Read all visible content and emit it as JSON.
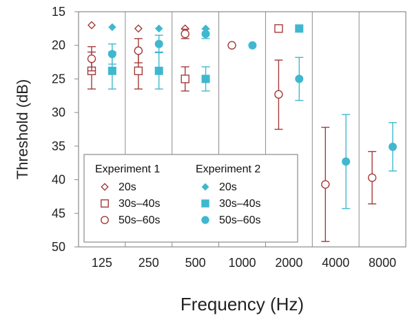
{
  "chart_data": {
    "type": "scatter",
    "xlabel": "Frequency (Hz)",
    "ylabel": "Threshold (dB)",
    "categories": [
      "125",
      "250",
      "500",
      "1000",
      "2000",
      "4000",
      "8000"
    ],
    "yticks": [
      "15",
      "20",
      "25",
      "30",
      "35",
      "40",
      "45",
      "50"
    ],
    "ylim": [
      15,
      50
    ],
    "y_inverted": true,
    "grid": "vertical",
    "legend": {
      "placement": "lower-left",
      "groups": [
        {
          "title": "Experiment 1",
          "entries": [
            {
              "label": "20s",
              "marker": "diamond-open",
              "color": "#a33a3a"
            },
            {
              "label": "30s–40s",
              "marker": "square-open",
              "color": "#a33a3a"
            },
            {
              "label": "50s–60s",
              "marker": "circle-open",
              "color": "#a33a3a"
            }
          ]
        },
        {
          "title": "Experiment 2",
          "entries": [
            {
              "label": "20s",
              "marker": "diamond-filled",
              "color": "#3fb8cf"
            },
            {
              "label": "30s–40s",
              "marker": "square-filled",
              "color": "#3fb8cf"
            },
            {
              "label": "50s–60s",
              "marker": "circle-filled",
              "color": "#3fb8cf"
            }
          ]
        }
      ]
    },
    "series": [
      {
        "experiment": 1,
        "age": "20s",
        "marker": "diamond-open",
        "color": "#a33a3a",
        "offset": -0.22,
        "points": [
          {
            "x": "125",
            "y": 17
          },
          {
            "x": "250",
            "y": 17.5
          },
          {
            "x": "500",
            "y": 17.5
          }
        ]
      },
      {
        "experiment": 1,
        "age": "30s–40s",
        "marker": "square-open",
        "color": "#a33a3a",
        "offset": -0.22,
        "points": [
          {
            "x": "125",
            "y": 23.8,
            "lo": 21,
            "hi": 26.5
          },
          {
            "x": "250",
            "y": 23.8,
            "lo": 21,
            "hi": 26.5
          },
          {
            "x": "500",
            "y": 25,
            "lo": 23.2,
            "hi": 26.8
          },
          {
            "x": "2000",
            "y": 17.5
          }
        ]
      },
      {
        "experiment": 1,
        "age": "50s–60s",
        "marker": "circle-open",
        "color": "#a33a3a",
        "offset": -0.22,
        "points": [
          {
            "x": "125",
            "y": 22,
            "lo": 20.2,
            "hi": 23.8
          },
          {
            "x": "250",
            "y": 20.8,
            "lo": 19,
            "hi": 22.6
          },
          {
            "x": "500",
            "y": 18.3,
            "lo": 17.6,
            "hi": 19
          },
          {
            "x": "1000",
            "y": 20
          },
          {
            "x": "2000",
            "y": 27.3,
            "lo": 22.2,
            "hi": 32.5
          },
          {
            "x": "4000",
            "y": 40.7,
            "lo": 32.2,
            "hi": 49.2
          },
          {
            "x": "8000",
            "y": 39.7,
            "lo": 35.8,
            "hi": 43.6
          }
        ]
      },
      {
        "experiment": 2,
        "age": "20s",
        "marker": "diamond-filled",
        "color": "#3fb8cf",
        "offset": 0.22,
        "points": [
          {
            "x": "125",
            "y": 17.3
          },
          {
            "x": "250",
            "y": 17.5
          },
          {
            "x": "500",
            "y": 17.5
          }
        ]
      },
      {
        "experiment": 2,
        "age": "30s–40s",
        "marker": "square-filled",
        "color": "#3fb8cf",
        "offset": 0.22,
        "points": [
          {
            "x": "125",
            "y": 23.8,
            "lo": 21,
            "hi": 26.5
          },
          {
            "x": "250",
            "y": 23.8,
            "lo": 21,
            "hi": 26.5
          },
          {
            "x": "500",
            "y": 25,
            "lo": 23.2,
            "hi": 26.8
          },
          {
            "x": "2000",
            "y": 17.5
          }
        ]
      },
      {
        "experiment": 2,
        "age": "50s–60s",
        "marker": "circle-filled",
        "color": "#3fb8cf",
        "offset": 0.22,
        "points": [
          {
            "x": "125",
            "y": 21.3,
            "lo": 19.8,
            "hi": 22.8
          },
          {
            "x": "250",
            "y": 19.8,
            "lo": 18.5,
            "hi": 21.1
          },
          {
            "x": "500",
            "y": 18.3,
            "lo": 17.6,
            "hi": 19
          },
          {
            "x": "1000",
            "y": 20
          },
          {
            "x": "2000",
            "y": 25,
            "lo": 21.8,
            "hi": 28.2
          },
          {
            "x": "4000",
            "y": 37.3,
            "lo": 30.3,
            "hi": 44.3
          },
          {
            "x": "8000",
            "y": 35.1,
            "lo": 31.5,
            "hi": 38.7
          }
        ]
      }
    ]
  }
}
